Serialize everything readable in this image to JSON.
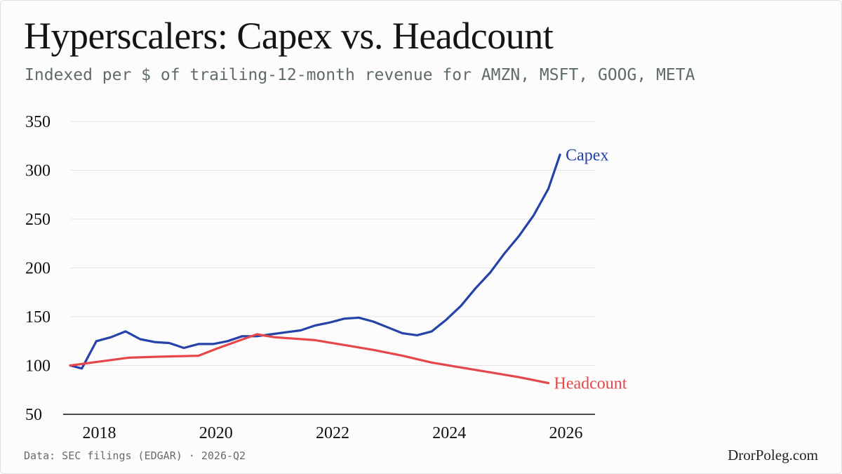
{
  "title": "Hyperscalers: Capex vs. Headcount",
  "subtitle": "Indexed per $ of trailing-12-month revenue for AMZN, MSFT, GOOG, META",
  "source": "Data: SEC filings (EDGAR) · 2026-Q2",
  "brand": "DrorPoleg.com",
  "chart_data": {
    "type": "line",
    "title": "Hyperscalers: Capex vs. Headcount",
    "subtitle": "Indexed per $ of trailing-12-month revenue for AMZN, MSFT, GOOG, META",
    "xlabel": "",
    "ylabel": "",
    "xlim": [
      2017.5,
      2026.5
    ],
    "ylim": [
      50,
      350
    ],
    "x_ticks": [
      2018,
      2020,
      2022,
      2024,
      2026
    ],
    "y_ticks": [
      50,
      100,
      150,
      200,
      250,
      300,
      350
    ],
    "grid": "horizontal",
    "legend": "direct labels at line ends",
    "series": [
      {
        "name": "Capex",
        "color": "#2442a8",
        "points": [
          [
            2017.5,
            100
          ],
          [
            2017.7,
            97
          ],
          [
            2017.95,
            125
          ],
          [
            2018.2,
            129
          ],
          [
            2018.45,
            135
          ],
          [
            2018.7,
            127
          ],
          [
            2018.95,
            124
          ],
          [
            2019.2,
            123
          ],
          [
            2019.45,
            118
          ],
          [
            2019.7,
            122
          ],
          [
            2019.95,
            122
          ],
          [
            2020.2,
            125
          ],
          [
            2020.45,
            130
          ],
          [
            2020.7,
            130
          ],
          [
            2020.95,
            132
          ],
          [
            2021.2,
            134
          ],
          [
            2021.45,
            136
          ],
          [
            2021.7,
            141
          ],
          [
            2021.95,
            144
          ],
          [
            2022.2,
            148
          ],
          [
            2022.45,
            149
          ],
          [
            2022.7,
            145
          ],
          [
            2022.95,
            139
          ],
          [
            2023.2,
            133
          ],
          [
            2023.45,
            131
          ],
          [
            2023.7,
            135
          ],
          [
            2023.95,
            147
          ],
          [
            2024.2,
            161
          ],
          [
            2024.45,
            179
          ],
          [
            2024.7,
            195
          ],
          [
            2024.95,
            215
          ],
          [
            2025.2,
            233
          ],
          [
            2025.45,
            254
          ],
          [
            2025.7,
            281
          ],
          [
            2025.9,
            316
          ]
        ]
      },
      {
        "name": "Headcount",
        "color": "#e5474b",
        "points": [
          [
            2017.5,
            100
          ],
          [
            2018.0,
            104
          ],
          [
            2018.5,
            108
          ],
          [
            2019.0,
            109
          ],
          [
            2019.7,
            110
          ],
          [
            2020.0,
            117
          ],
          [
            2020.7,
            132
          ],
          [
            2021.0,
            129
          ],
          [
            2021.7,
            126
          ],
          [
            2022.2,
            121
          ],
          [
            2022.7,
            116
          ],
          [
            2023.2,
            110
          ],
          [
            2023.7,
            103
          ],
          [
            2024.2,
            98
          ],
          [
            2024.7,
            93
          ],
          [
            2025.2,
            88
          ],
          [
            2025.7,
            82
          ]
        ]
      }
    ]
  }
}
